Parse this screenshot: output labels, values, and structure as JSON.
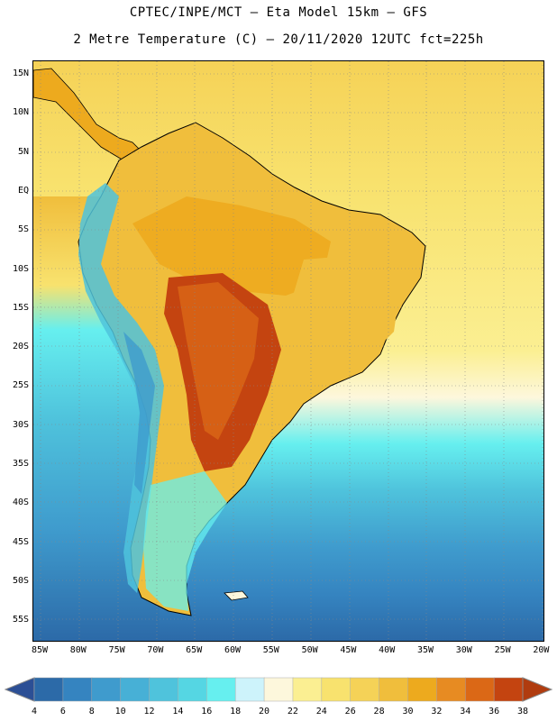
{
  "title": {
    "line1": "CPTEC/INPE/MCT –  Eta Model 15km – GFS",
    "line2": "2 Metre Temperature (C) – 20/11/2020 12UTC fct=225h"
  },
  "map": {
    "lat_labels": [
      "15N",
      "10N",
      "5N",
      "EQ",
      "5S",
      "10S",
      "15S",
      "20S",
      "25S",
      "30S",
      "35S",
      "40S",
      "45S",
      "50S",
      "55S"
    ],
    "lon_labels": [
      "85W",
      "80W",
      "75W",
      "70W",
      "65W",
      "60W",
      "55W",
      "50W",
      "45W",
      "40W",
      "35W",
      "30W",
      "25W",
      "20W"
    ],
    "lat_range": [
      17,
      -58
    ],
    "lon_range": [
      -86,
      -20
    ]
  },
  "colorbar": {
    "labels": [
      "4",
      "6",
      "8",
      "10",
      "12",
      "14",
      "16",
      "18",
      "20",
      "22",
      "24",
      "26",
      "28",
      "30",
      "32",
      "34",
      "36",
      "38"
    ],
    "colors": [
      "#2c6aa8",
      "#3584c0",
      "#3f9bcd",
      "#47b0d6",
      "#4fc3dc",
      "#55d6e3",
      "#66efef",
      "#cdf3fb",
      "#fdf7dc",
      "#fbef92",
      "#f8e26e",
      "#f5d257",
      "#f0be3c",
      "#edaa1e",
      "#e78b22",
      "#db6816",
      "#c44410"
    ],
    "low_color": "#2c4f95",
    "high_color": "#b03c0f"
  }
}
